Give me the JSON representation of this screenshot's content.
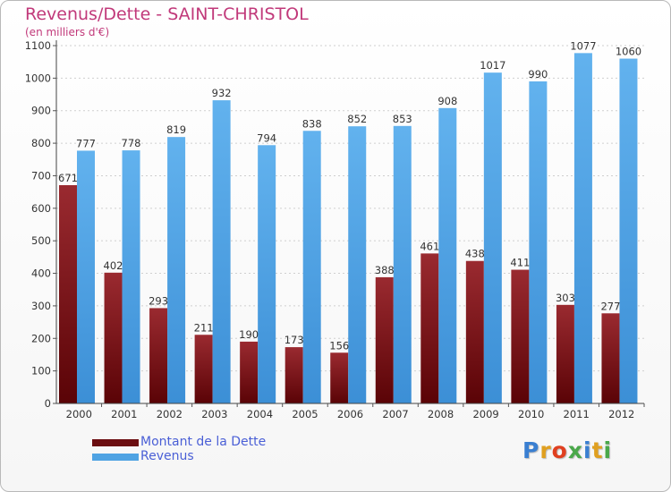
{
  "title": "Revenus/Dette - SAINT-CHRISTOL",
  "subtitle": "(en milliers d'€)",
  "logo_text": "Proxiti",
  "colors": {
    "title": "#c1397a",
    "dette": "#7a0f14",
    "revenus": "#4fa3e3",
    "legend_text": "#4a5fd6"
  },
  "legend": {
    "items": [
      {
        "label": "Montant de la Dette",
        "color": "#6b0d10"
      },
      {
        "label": "Revenus",
        "color": "#4fa3e3"
      }
    ]
  },
  "chart_data": {
    "type": "bar",
    "title": "Revenus/Dette - SAINT-CHRISTOL",
    "subtitle": "(en milliers d'€)",
    "categories": [
      "2000",
      "2001",
      "2002",
      "2003",
      "2004",
      "2005",
      "2006",
      "2007",
      "2008",
      "2009",
      "2010",
      "2011",
      "2012"
    ],
    "series": [
      {
        "name": "Montant de la Dette",
        "values": [
          671,
          402,
          293,
          211,
          190,
          173,
          156,
          388,
          461,
          438,
          411,
          303,
          277
        ]
      },
      {
        "name": "Revenus",
        "values": [
          777,
          778,
          819,
          932,
          794,
          838,
          852,
          853,
          908,
          1017,
          990,
          1077,
          1060
        ]
      }
    ],
    "yticks": [
      0,
      100,
      200,
      300,
      400,
      500,
      600,
      700,
      800,
      900,
      1000,
      1100
    ],
    "ylim": [
      0,
      1100
    ],
    "grid": true,
    "legend_position": "bottom-left"
  }
}
